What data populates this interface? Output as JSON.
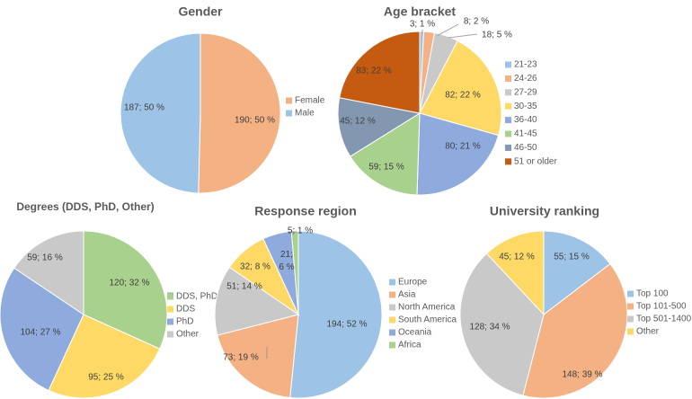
{
  "colors": {
    "blue": "#9dc3e6",
    "orange": "#f4b183",
    "gray": "#c9c9c9",
    "yellow": "#ffd966",
    "periwinkle": "#8faadc",
    "green": "#a9d18e",
    "slate": "#8497b0",
    "rust": "#c55a11",
    "label_text": "#404040",
    "title_text": "#595959"
  },
  "chart_data": [
    {
      "id": "gender",
      "type": "pie",
      "title": "Gender",
      "slices": [
        {
          "name": "Female",
          "value": 190,
          "label": "190; 50 %",
          "color": "orange"
        },
        {
          "name": "Male",
          "value": 187,
          "label": "187; 50 %",
          "color": "blue"
        }
      ]
    },
    {
      "id": "age",
      "type": "pie",
      "title": "Age bracket",
      "slices": [
        {
          "name": "21-23",
          "value": 3,
          "label": "3; 1 %",
          "color": "blue"
        },
        {
          "name": "24-26",
          "value": 8,
          "label": "8; 2 %",
          "color": "orange"
        },
        {
          "name": "27-29",
          "value": 18,
          "label": "18; 5 %",
          "color": "gray"
        },
        {
          "name": "30-35",
          "value": 82,
          "label": "82; 22 %",
          "color": "yellow"
        },
        {
          "name": "36-40",
          "value": 80,
          "label": "80; 21 %",
          "color": "periwinkle"
        },
        {
          "name": "41-45",
          "value": 59,
          "label": "59; 15 %",
          "color": "green"
        },
        {
          "name": "46-50",
          "value": 45,
          "label": "45; 12 %",
          "color": "slate"
        },
        {
          "name": "51 or older",
          "value": 83,
          "label": "83; 22 %",
          "color": "rust"
        }
      ]
    },
    {
      "id": "degrees",
      "type": "pie",
      "title": "Degrees (DDS, PhD, Other)",
      "slices": [
        {
          "name": "DDS, PhD",
          "value": 120,
          "label": "120; 32 %",
          "color": "green"
        },
        {
          "name": "DDS",
          "value": 95,
          "label": "95; 25 %",
          "color": "yellow"
        },
        {
          "name": "PhD",
          "value": 104,
          "label": "104; 27 %",
          "color": "periwinkle"
        },
        {
          "name": "Other",
          "value": 59,
          "label": "59; 16 %",
          "color": "gray"
        }
      ]
    },
    {
      "id": "region",
      "type": "pie",
      "title": "Response region",
      "slices": [
        {
          "name": "Europe",
          "value": 194,
          "label": "194; 52 %",
          "color": "blue"
        },
        {
          "name": "Asia",
          "value": 73,
          "label": "73; 19 %",
          "color": "orange"
        },
        {
          "name": "North America",
          "value": 51,
          "label": "51; 14 %",
          "color": "gray"
        },
        {
          "name": "South America",
          "value": 32,
          "label": "32; 8 %",
          "color": "yellow"
        },
        {
          "name": "Oceania",
          "value": 21,
          "label": "21; 6 %",
          "color": "periwinkle"
        },
        {
          "name": "Africa",
          "value": 5,
          "label": "5; 1 %",
          "color": "green"
        }
      ]
    },
    {
      "id": "ranking",
      "type": "pie",
      "title": "University ranking",
      "slices": [
        {
          "name": "Top 100",
          "value": 55,
          "label": "55; 15 %",
          "color": "blue"
        },
        {
          "name": "Top 101-500",
          "value": 148,
          "label": "148; 39 %",
          "color": "orange"
        },
        {
          "name": "Top 501-1400",
          "value": 128,
          "label": "128; 34 %",
          "color": "gray"
        },
        {
          "name": "Other",
          "value": 45,
          "label": "45; 12 %",
          "color": "yellow"
        }
      ]
    }
  ]
}
